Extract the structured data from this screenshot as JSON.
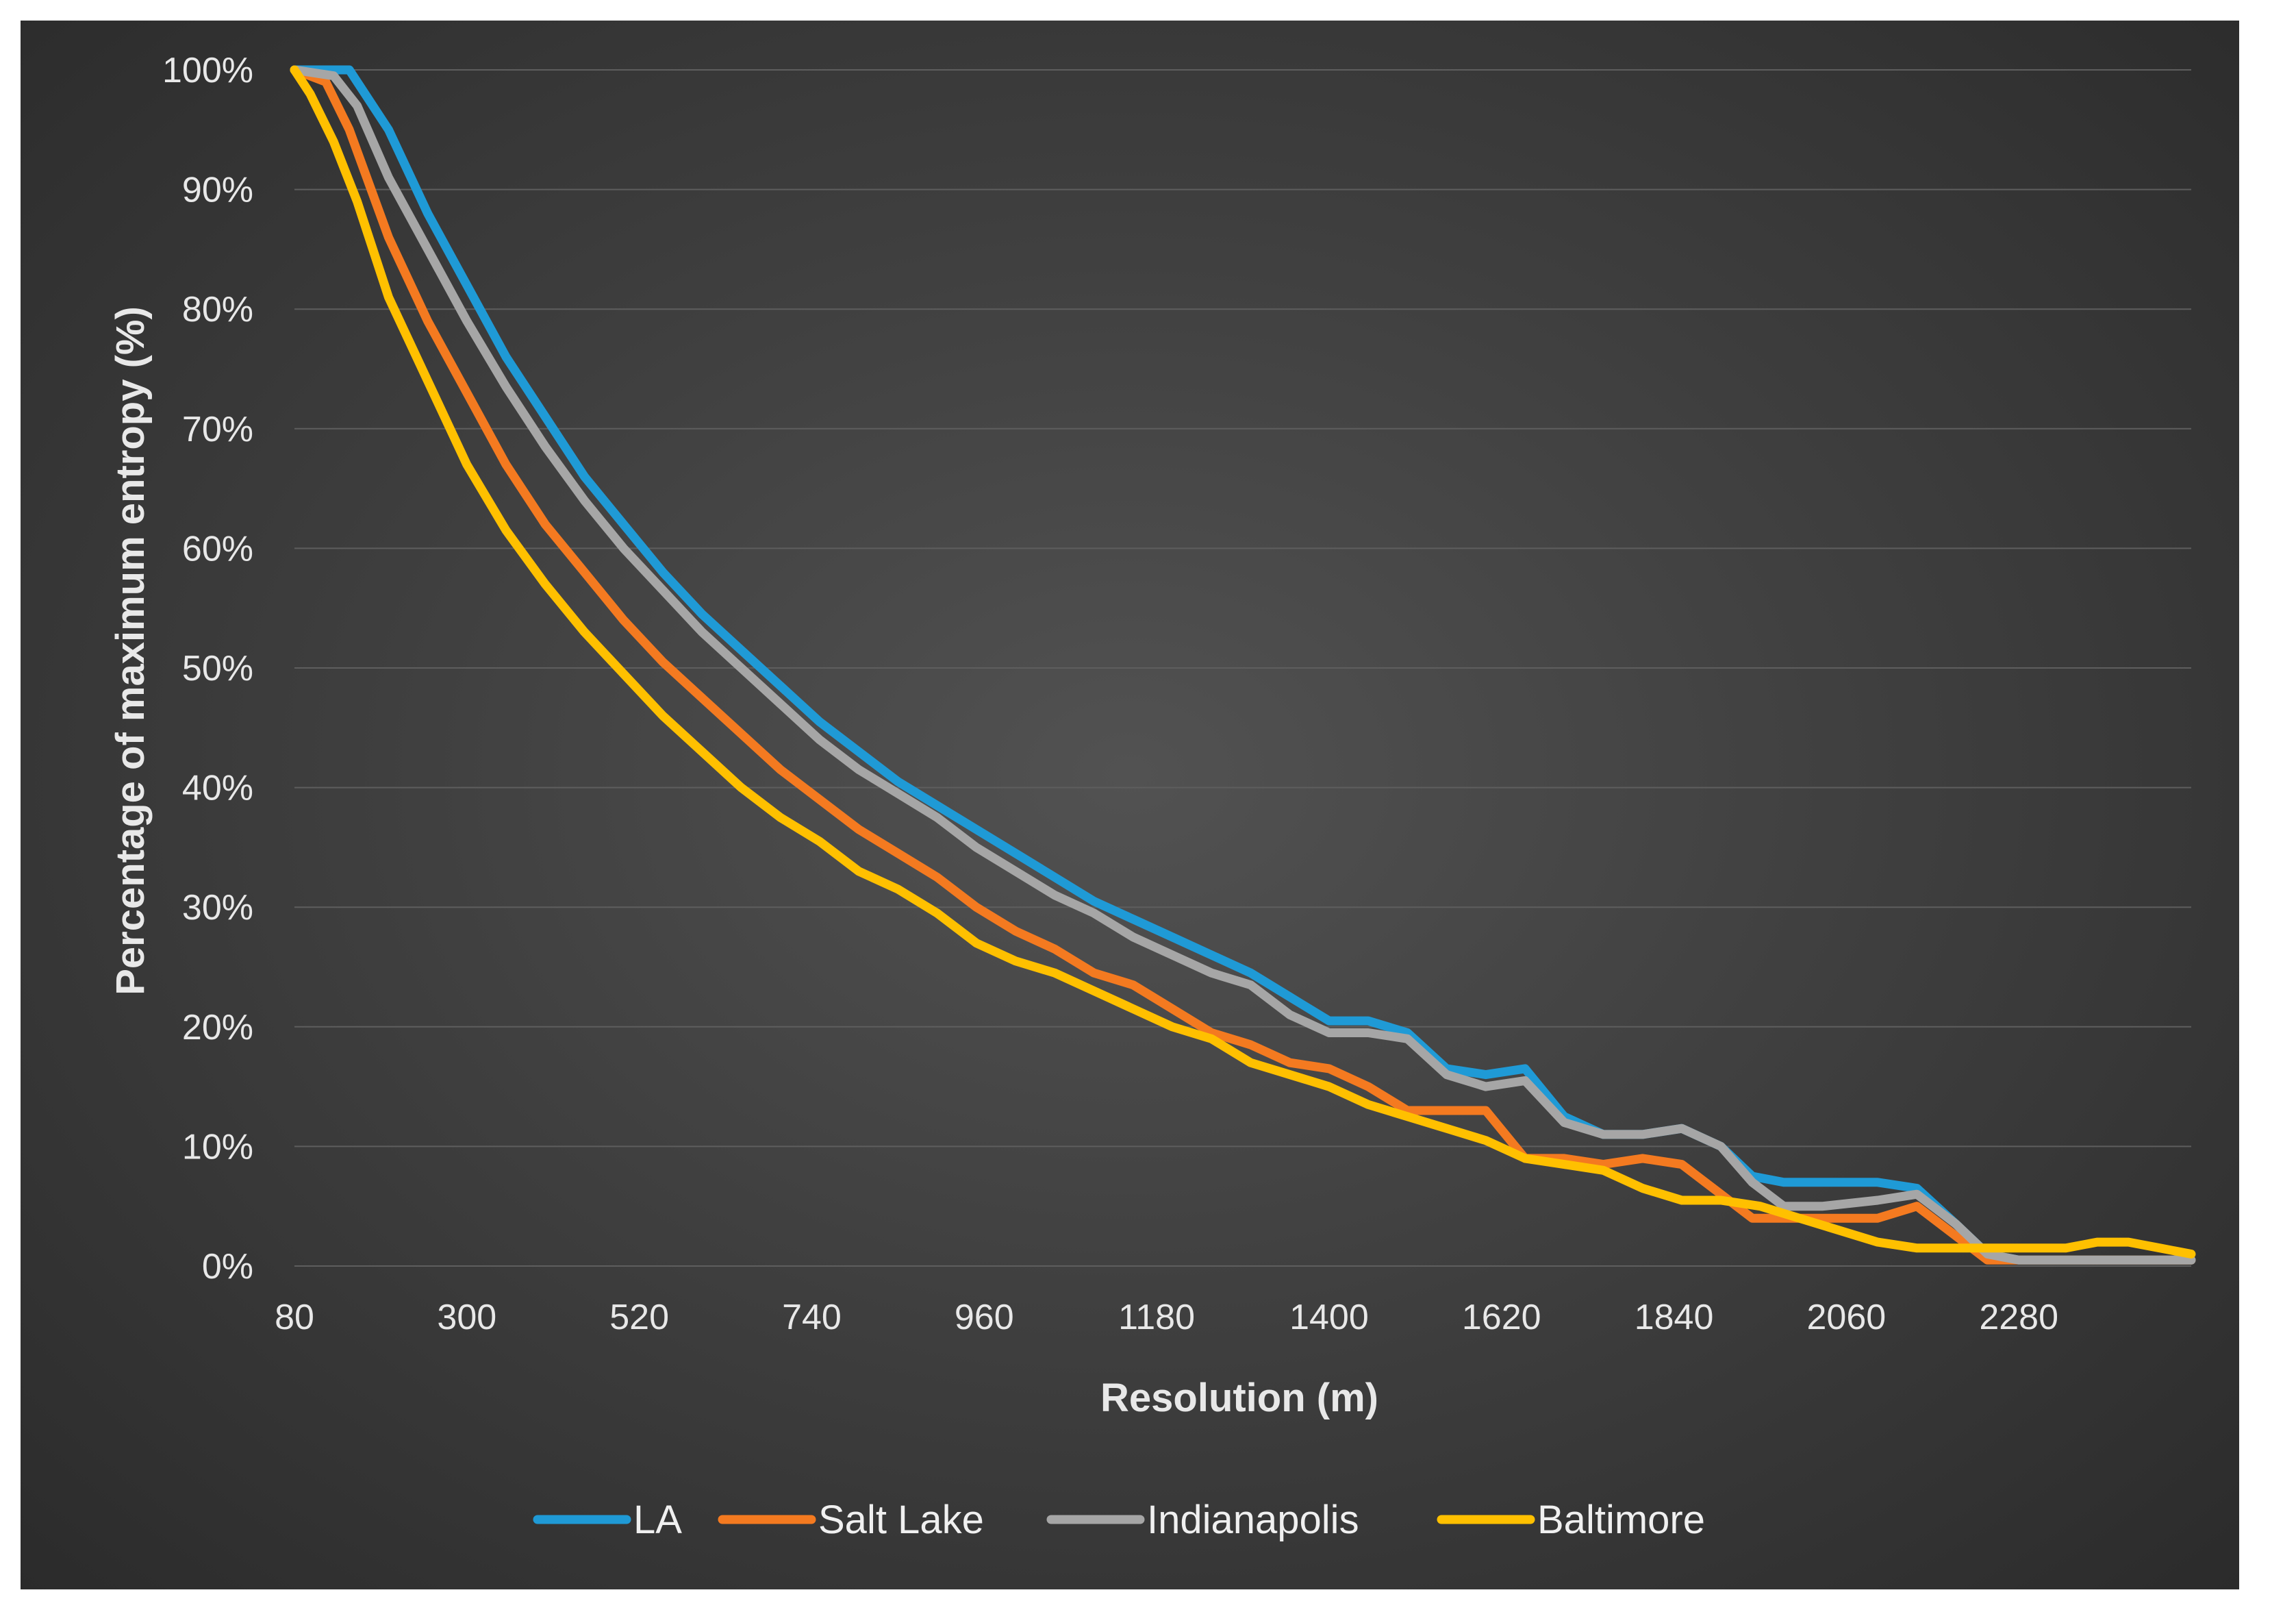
{
  "chart_data": {
    "type": "line",
    "title": "",
    "xlabel": "Resolution (m)",
    "ylabel": "Percentage of maximum entropy (%)",
    "xlim": [
      80,
      2500
    ],
    "ylim": [
      0,
      100
    ],
    "x_ticks": [
      "80",
      "300",
      "520",
      "740",
      "960",
      "1180",
      "1400",
      "1620",
      "1840",
      "2060",
      "2280"
    ],
    "x_tick_values": [
      80,
      300,
      520,
      740,
      960,
      1180,
      1400,
      1620,
      1840,
      2060,
      2280
    ],
    "y_ticks": [
      "0%",
      "10%",
      "20%",
      "30%",
      "40%",
      "50%",
      "60%",
      "70%",
      "80%",
      "90%",
      "100%"
    ],
    "y_tick_values": [
      0,
      10,
      20,
      30,
      40,
      50,
      60,
      70,
      80,
      90,
      100
    ],
    "grid": true,
    "legend_position": "bottom",
    "series": [
      {
        "name": "LA",
        "color": "#1f9ad6",
        "x": [
          80,
          150,
          200,
          250,
          300,
          350,
          400,
          450,
          500,
          550,
          600,
          650,
          700,
          750,
          800,
          850,
          900,
          950,
          1000,
          1050,
          1100,
          1150,
          1200,
          1250,
          1300,
          1350,
          1400,
          1450,
          1500,
          1550,
          1600,
          1650,
          1700,
          1750,
          1800,
          1850,
          1900,
          1940,
          1980,
          2030,
          2100,
          2150,
          2200,
          2240,
          2280,
          2310,
          2360,
          2420,
          2500
        ],
        "values": [
          100,
          100,
          95,
          88,
          82,
          76,
          71,
          66,
          62,
          58,
          54.5,
          51.5,
          48.5,
          45.5,
          43,
          40.5,
          38.5,
          36.5,
          34.5,
          32.5,
          30.5,
          29,
          27.5,
          26,
          24.5,
          22.5,
          20.5,
          20.5,
          19.5,
          16.5,
          16,
          16.5,
          12.5,
          11,
          11,
          11.5,
          10,
          7.5,
          7,
          7,
          7,
          6.5,
          3.5,
          1,
          0.5,
          0.5,
          0.5,
          0.5,
          0.5
        ]
      },
      {
        "name": "Salt Lake",
        "color": "#f47a20",
        "x": [
          80,
          120,
          150,
          200,
          250,
          300,
          350,
          400,
          450,
          500,
          550,
          600,
          650,
          700,
          750,
          800,
          850,
          900,
          950,
          1000,
          1050,
          1100,
          1150,
          1200,
          1250,
          1300,
          1350,
          1400,
          1450,
          1500,
          1550,
          1600,
          1650,
          1700,
          1750,
          1800,
          1850,
          1900,
          1940,
          1980,
          2030,
          2060,
          2100,
          2150,
          2200,
          2240,
          2280,
          2310,
          2360,
          2420,
          2500
        ],
        "values": [
          100,
          99,
          95,
          86,
          79,
          73,
          67,
          62,
          58,
          54,
          50.5,
          47.5,
          44.5,
          41.5,
          39,
          36.5,
          34.5,
          32.5,
          30,
          28,
          26.5,
          24.5,
          23.5,
          21.5,
          19.5,
          18.5,
          17,
          16.5,
          15,
          13,
          13,
          13,
          9,
          9,
          8.5,
          9,
          8.5,
          6,
          4,
          4,
          4,
          4,
          4,
          5,
          2.5,
          0.5,
          0.5,
          0.5,
          0.5,
          0.5,
          0.5
        ]
      },
      {
        "name": "Indianapolis",
        "color": "#a6a6a6",
        "x": [
          80,
          130,
          160,
          200,
          250,
          300,
          350,
          400,
          450,
          500,
          550,
          600,
          650,
          700,
          750,
          800,
          850,
          900,
          950,
          1000,
          1050,
          1100,
          1150,
          1200,
          1250,
          1300,
          1350,
          1400,
          1450,
          1500,
          1550,
          1600,
          1650,
          1700,
          1750,
          1800,
          1850,
          1900,
          1940,
          1980,
          2030,
          2100,
          2150,
          2200,
          2240,
          2280,
          2310,
          2360,
          2420,
          2500
        ],
        "values": [
          100,
          99.5,
          97,
          91,
          85,
          79,
          73.5,
          68.5,
          64,
          60,
          56.5,
          53,
          50,
          47,
          44,
          41.5,
          39.5,
          37.5,
          35,
          33,
          31,
          29.5,
          27.5,
          26,
          24.5,
          23.5,
          21,
          19.5,
          19.5,
          19,
          16,
          15,
          15.5,
          12,
          11,
          11,
          11.5,
          10,
          7,
          5,
          5,
          5.5,
          6,
          3.5,
          1,
          0.5,
          0.5,
          0.5,
          0.5,
          0.5
        ]
      },
      {
        "name": "Baltimore",
        "color": "#ffc000",
        "x": [
          80,
          100,
          130,
          160,
          200,
          250,
          300,
          350,
          400,
          450,
          500,
          550,
          600,
          650,
          700,
          750,
          800,
          850,
          900,
          950,
          1000,
          1050,
          1100,
          1150,
          1200,
          1250,
          1300,
          1350,
          1400,
          1450,
          1500,
          1550,
          1600,
          1650,
          1700,
          1750,
          1800,
          1850,
          1900,
          1950,
          2000,
          2050,
          2100,
          2150,
          2200,
          2230,
          2260,
          2300,
          2340,
          2380,
          2420,
          2460,
          2500
        ],
        "values": [
          100,
          98,
          94,
          89,
          81,
          74,
          67,
          61.5,
          57,
          53,
          49.5,
          46,
          43,
          40,
          37.5,
          35.5,
          33,
          31.5,
          29.5,
          27,
          25.5,
          24.5,
          23,
          21.5,
          20,
          19,
          17,
          16,
          15,
          13.5,
          12.5,
          11.5,
          10.5,
          9,
          8.5,
          8,
          6.5,
          5.5,
          5.5,
          5,
          4,
          3,
          2,
          1.5,
          1.5,
          1.5,
          1.5,
          1.5,
          1.5,
          2,
          2,
          1.5,
          1
        ]
      }
    ]
  }
}
